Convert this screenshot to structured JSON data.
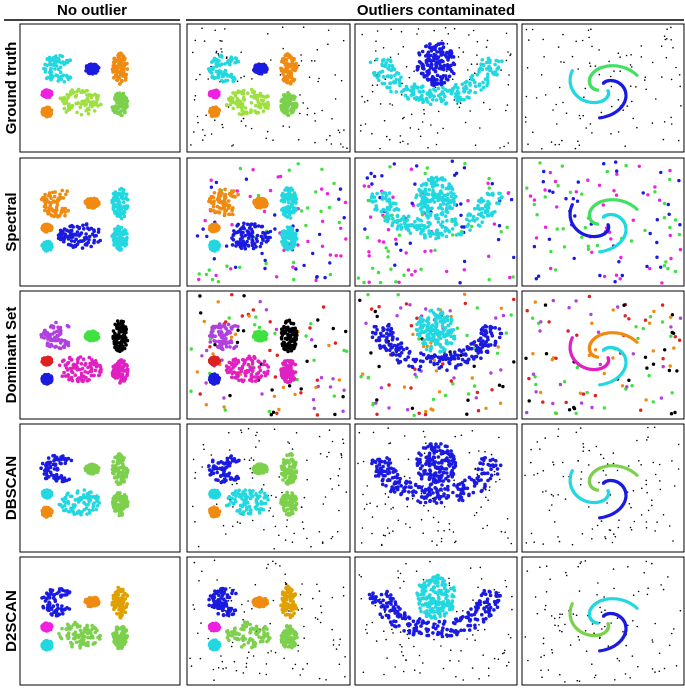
{
  "header": {
    "left": "No outlier",
    "right": "Outliers contaminated"
  },
  "rows": [
    {
      "label": "Ground truth"
    },
    {
      "label": "Spectral"
    },
    {
      "label": "Dominant Set"
    },
    {
      "label": "DBSCAN"
    },
    {
      "label": "D2SCAN"
    }
  ]
}
